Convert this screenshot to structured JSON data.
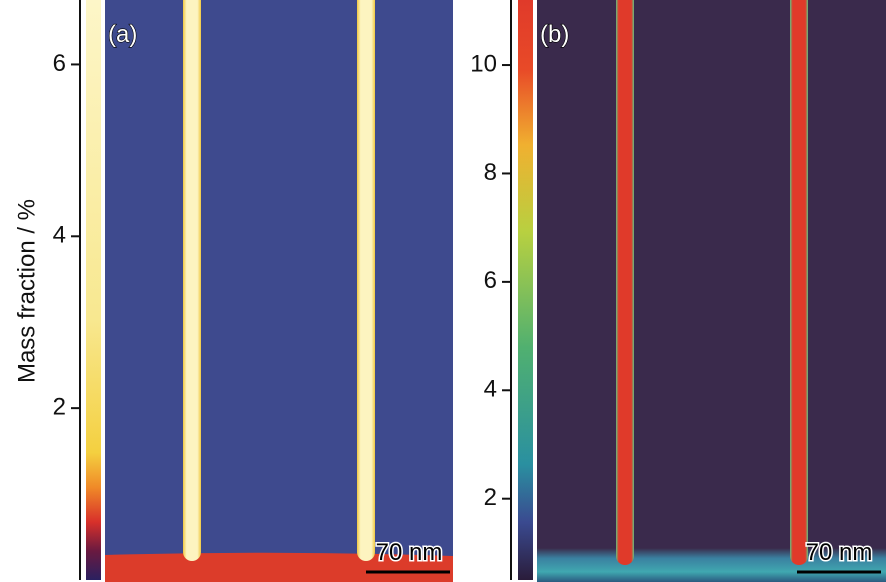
{
  "y_axis_label": "Mass fraction / %",
  "panels": [
    {
      "label": "(a)",
      "colorbar": {
        "lim": [
          0,
          6.75
        ],
        "ticks": [
          2,
          4,
          6
        ]
      },
      "scale_bar": "70 nm"
    },
    {
      "label": "(b)",
      "colorbar": {
        "lim": [
          0.5,
          11.2
        ],
        "ticks": [
          2,
          4,
          6,
          8,
          10
        ]
      },
      "scale_bar": "70 nm"
    }
  ]
}
